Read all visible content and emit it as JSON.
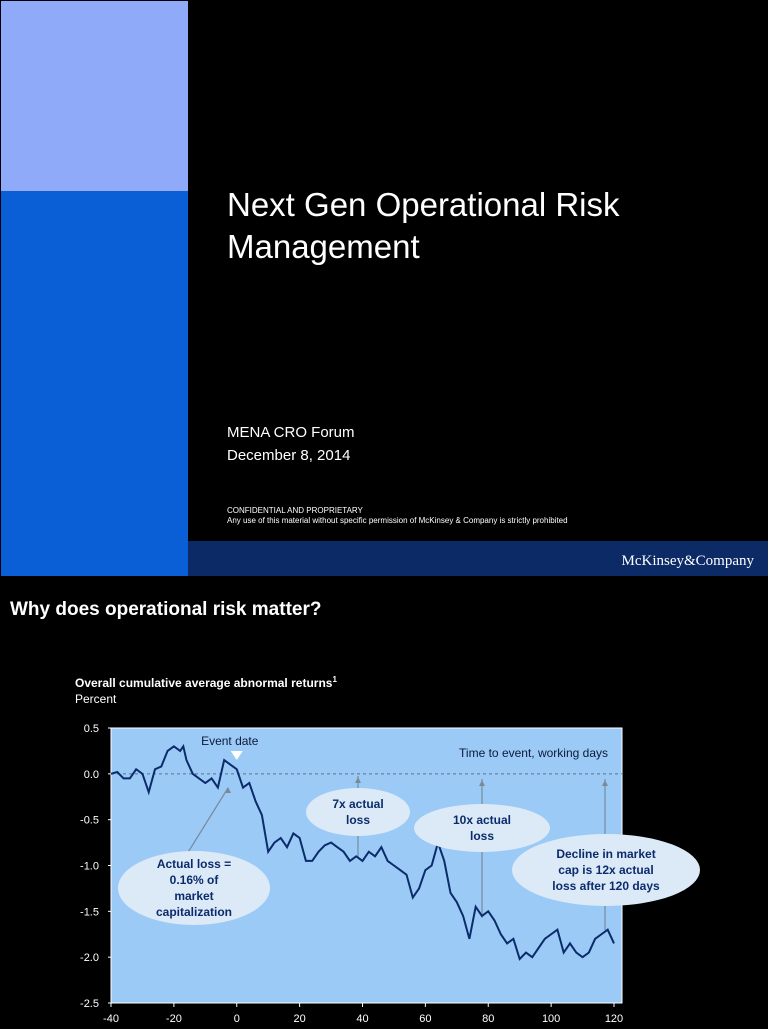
{
  "slide1": {
    "title_lines": [
      "Next Gen Operational Risk",
      "Management"
    ],
    "event": "MENA CRO Forum",
    "date": "December 8, 2014",
    "confidential": "CONFIDENTIAL AND PROPRIETARY",
    "disclaimer": "Any use of this material without specific permission of McKinsey & Company is strictly prohibited",
    "logo": "McKinsey&Company"
  },
  "slide2": {
    "title": "Why does operational risk matter?"
  },
  "chart_data": {
    "type": "line",
    "title": "Overall cumulative average abnormal returns",
    "title_footnote": "1",
    "subtitle": "Percent",
    "x": [
      -40,
      -38,
      -36,
      -34,
      -32,
      -30,
      -28,
      -26,
      -24,
      -22,
      -20,
      -18,
      -17,
      -16,
      -14,
      -12,
      -10,
      -8,
      -6,
      -4,
      -2,
      0,
      2,
      4,
      6,
      8,
      10,
      12,
      14,
      16,
      18,
      20,
      22,
      24,
      26,
      28,
      30,
      32,
      34,
      36,
      38,
      40,
      42,
      44,
      46,
      48,
      50,
      52,
      54,
      56,
      58,
      60,
      62,
      64,
      66,
      68,
      70,
      72,
      74,
      76,
      78,
      80,
      82,
      84,
      86,
      88,
      90,
      92,
      94,
      96,
      98,
      100,
      102,
      104,
      106,
      108,
      110,
      112,
      114,
      116,
      118,
      120
    ],
    "values": [
      0.0,
      0.02,
      -0.05,
      -0.05,
      0.05,
      0.0,
      -0.2,
      0.05,
      0.08,
      0.25,
      0.3,
      0.25,
      0.3,
      0.15,
      0.0,
      -0.05,
      -0.1,
      -0.05,
      -0.15,
      0.15,
      0.1,
      0.05,
      -0.15,
      -0.1,
      -0.3,
      -0.45,
      -0.85,
      -0.75,
      -0.7,
      -0.8,
      -0.65,
      -0.7,
      -0.95,
      -0.95,
      -0.85,
      -0.78,
      -0.75,
      -0.8,
      -0.85,
      -0.95,
      -0.9,
      -0.95,
      -0.85,
      -0.9,
      -0.8,
      -0.95,
      -1.0,
      -1.05,
      -1.1,
      -1.35,
      -1.25,
      -1.05,
      -1.0,
      -0.75,
      -0.95,
      -1.3,
      -1.4,
      -1.55,
      -1.8,
      -1.45,
      -1.55,
      -1.5,
      -1.6,
      -1.75,
      -1.85,
      -1.8,
      -2.02,
      -1.95,
      -2.0,
      -1.9,
      -1.8,
      -1.75,
      -1.7,
      -1.95,
      -1.85,
      -1.95,
      -2.0,
      -1.95,
      -1.8,
      -1.75,
      -1.7,
      -1.85
    ],
    "color": "#0b2b6b",
    "xlim": [
      -40,
      120
    ],
    "xticks": [
      -40,
      -20,
      0,
      20,
      40,
      60,
      80,
      100,
      120
    ],
    "ylim": [
      -2.5,
      0.5
    ],
    "yticks": [
      0.5,
      {
        "value": 0,
        "label": "0.0"
      },
      -0.5,
      {
        "value": -1,
        "label": "-1.0"
      },
      -1.5,
      {
        "value": -2,
        "label": "-2.0"
      },
      -2.5
    ],
    "event_label": "Event date",
    "x_axis_label": "Time to event, working days",
    "callouts": [
      {
        "lines": [
          "Actual loss =",
          "0.16% of",
          "market",
          "capitalization"
        ]
      },
      {
        "lines": [
          "7x actual",
          "loss"
        ]
      },
      {
        "lines": [
          "10x actual",
          "loss"
        ]
      },
      {
        "lines": [
          "Decline in market",
          "cap is 12x actual",
          "loss after 120 days"
        ]
      }
    ]
  }
}
